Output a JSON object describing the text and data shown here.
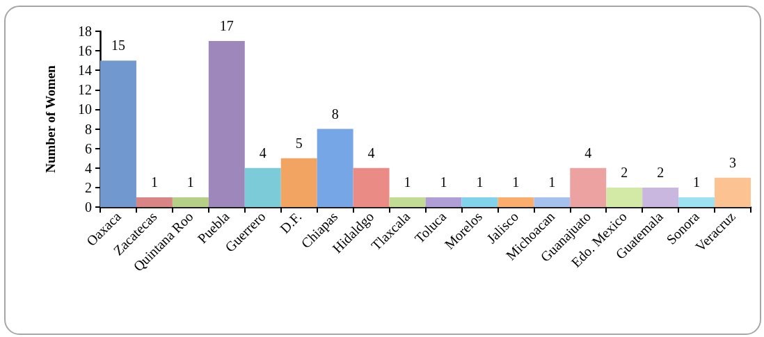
{
  "chart_data": {
    "type": "bar",
    "ylabel": "Number of Women",
    "categories": [
      "Oaxaca",
      "Zacatecas",
      "Quintana Roo",
      "Puebla",
      "Guerrero",
      "D.F.",
      "Chiapas",
      "Hidaldgo",
      "Tlaxcala",
      "Toluca",
      "Morelos",
      "Jalisco",
      "Michoacan",
      "Guanajuato",
      "Edo. Mexico",
      "Guatemala",
      "Sonora",
      "Veracruz"
    ],
    "values": [
      15,
      1,
      1,
      17,
      4,
      5,
      8,
      4,
      1,
      1,
      1,
      1,
      1,
      4,
      2,
      2,
      1,
      3
    ],
    "colors": [
      "#7199cf",
      "#d98585",
      "#b5cf86",
      "#9e88bb",
      "#7ccbd8",
      "#f2a462",
      "#76a6e6",
      "#eb8b86",
      "#c3dc94",
      "#b09ed6",
      "#80d3ea",
      "#fbad6e",
      "#a5c2ee",
      "#eda2a2",
      "#d3e9a6",
      "#c9b7e0",
      "#9de2f2",
      "#fdc291"
    ],
    "ylim": [
      0,
      18
    ],
    "yticks": [
      0,
      2,
      4,
      6,
      8,
      10,
      12,
      14,
      16,
      18
    ],
    "data_labels": true
  }
}
